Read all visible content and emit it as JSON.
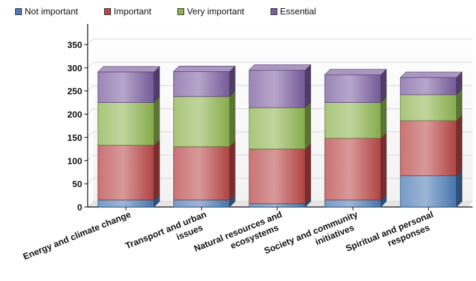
{
  "chart_data": {
    "type": "bar",
    "stacked": true,
    "three_d": true,
    "categories": [
      [
        "Energy and climate change"
      ],
      [
        "Transport and urban",
        "issues"
      ],
      [
        "Natural resources and",
        "ecosystems"
      ],
      [
        "Society and community",
        "initiatives"
      ],
      [
        "Spiritual and personal",
        "responses"
      ]
    ],
    "series": [
      {
        "name": "Not important",
        "color": "#4a7ab5",
        "values": [
          15,
          15,
          7,
          15,
          67
        ]
      },
      {
        "name": "Important",
        "color": "#b84646",
        "values": [
          118,
          115,
          118,
          133,
          119
        ]
      },
      {
        "name": "Very important",
        "color": "#8db34e",
        "values": [
          92,
          108,
          89,
          77,
          56
        ]
      },
      {
        "name": "Essential",
        "color": "#7a5ea0",
        "values": [
          66,
          54,
          81,
          60,
          37
        ]
      }
    ],
    "ylim": [
      0,
      350
    ],
    "yticks": [
      0,
      50,
      100,
      150,
      200,
      250,
      300,
      350
    ],
    "grid": true,
    "legend_position": "top-left",
    "title": "",
    "xlabel": "",
    "ylabel": ""
  }
}
